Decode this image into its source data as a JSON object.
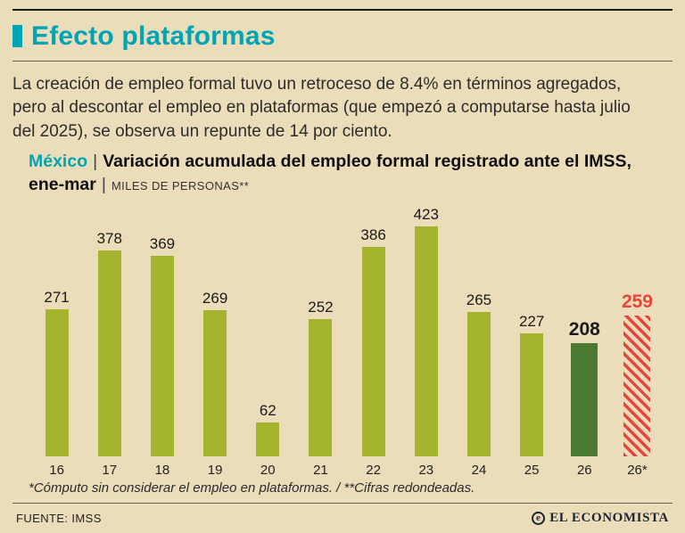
{
  "page": {
    "title": "Efecto plataformas",
    "intro": "La creación de empleo formal tuvo un retroceso de 8.4% en términos agregados, pero al descontar el empleo en plataformas (que empezó a computarse hasta julio del 2025), se observa un repunte de 14 por ciento.",
    "footnote": "*Cómputo sin considerar el empleo en plataformas. / **Cifras redondeadas.",
    "source": "FUENTE: IMSS",
    "brand": "EL ECONOMISTA",
    "brand_icon": "e"
  },
  "chart_header": {
    "region": "México",
    "separator": "|",
    "title": "Variación acumulada del empleo formal registrado ante el IMSS, ene-mar",
    "unit": "MILES DE PERSONAS**"
  },
  "colors": {
    "accent_teal": "#00a5b5",
    "bar_green": "#a4b42f",
    "bar_dark_green": "#4b7a33",
    "bar_red": "#e8463c",
    "background": "#ebdcba"
  },
  "chart_data": {
    "type": "bar",
    "title": "México | Variación acumulada del empleo formal registrado ante el IMSS, ene-mar",
    "unit": "MILES DE PERSONAS**",
    "categories": [
      "16",
      "17",
      "18",
      "19",
      "20",
      "21",
      "22",
      "23",
      "24",
      "25",
      "26",
      "26*"
    ],
    "values": [
      271,
      378,
      369,
      269,
      62,
      252,
      386,
      423,
      265,
      227,
      208,
      259
    ],
    "bar_styles": [
      "green",
      "green",
      "green",
      "green",
      "green",
      "green",
      "green",
      "green",
      "green",
      "green",
      "dark",
      "hatched"
    ],
    "ylim": [
      0,
      423
    ],
    "grid": false,
    "legend": false
  }
}
